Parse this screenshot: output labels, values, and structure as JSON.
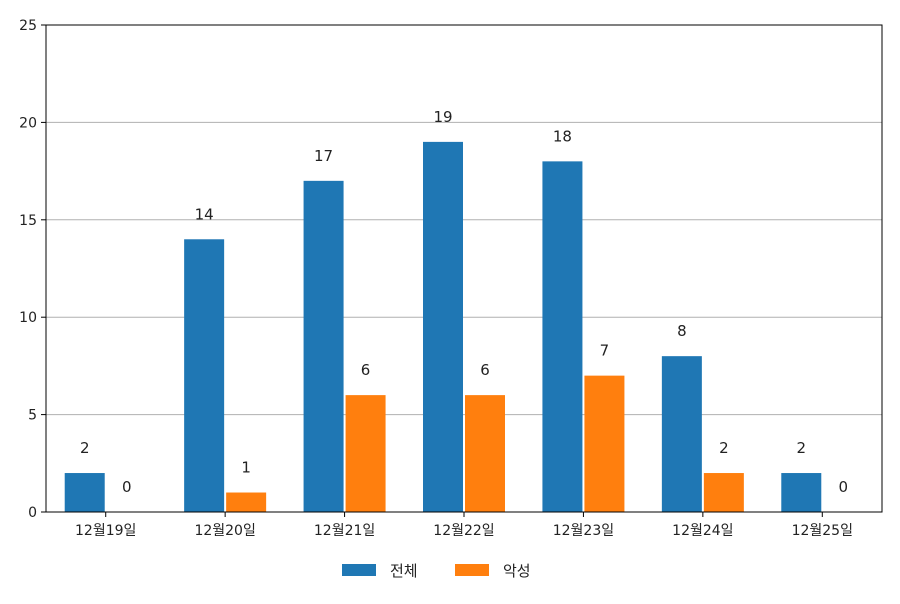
{
  "chart_data": {
    "type": "bar",
    "categories": [
      "12월19일",
      "12월20일",
      "12월21일",
      "12월22일",
      "12월23일",
      "12월24일",
      "12월25일"
    ],
    "series": [
      {
        "name": "전체",
        "values": [
          2,
          14,
          17,
          19,
          18,
          8,
          2
        ],
        "color": "#1f77b4"
      },
      {
        "name": "악성",
        "values": [
          0,
          1,
          6,
          6,
          7,
          2,
          0
        ],
        "color": "#ff7f0e"
      }
    ],
    "title": "",
    "xlabel": "",
    "ylabel": "",
    "ylim": [
      0,
      25
    ],
    "yticks": [
      0,
      5,
      10,
      15,
      20,
      25
    ],
    "grid": "horizontal",
    "legend_position": "bottom-center",
    "data_labels": true
  }
}
